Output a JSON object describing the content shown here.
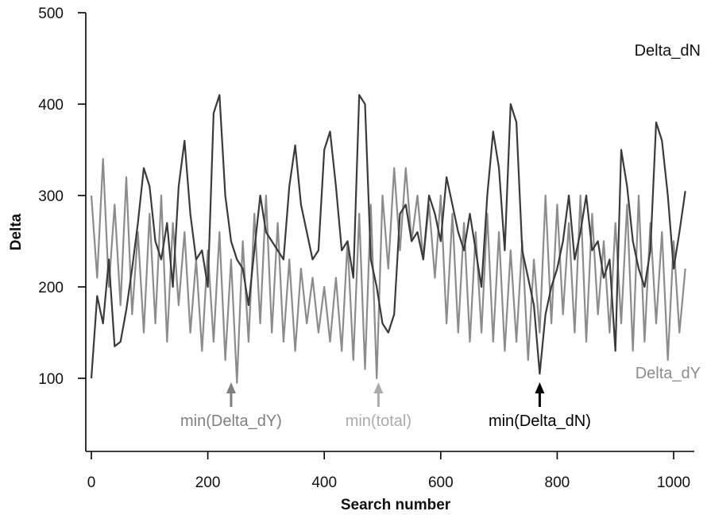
{
  "chart_data": {
    "type": "line",
    "xlabel": "Search number",
    "ylabel": "Delta",
    "xlim": [
      0,
      1030
    ],
    "ylim": [
      20,
      500
    ],
    "xticks": [
      0,
      200,
      400,
      600,
      800,
      1000
    ],
    "yticks": [
      100,
      200,
      300,
      400,
      500
    ],
    "grid": false,
    "series": [
      {
        "name": "Delta_dN",
        "color": "#3a3a3a",
        "x": [
          0,
          10,
          20,
          30,
          40,
          50,
          60,
          70,
          80,
          90,
          100,
          110,
          120,
          130,
          140,
          150,
          160,
          170,
          180,
          190,
          200,
          210,
          220,
          230,
          240,
          250,
          260,
          270,
          280,
          290,
          300,
          310,
          320,
          330,
          340,
          350,
          360,
          370,
          380,
          390,
          400,
          410,
          420,
          430,
          440,
          450,
          460,
          470,
          480,
          490,
          500,
          510,
          520,
          530,
          540,
          550,
          560,
          570,
          580,
          590,
          600,
          610,
          620,
          630,
          640,
          650,
          660,
          670,
          680,
          690,
          700,
          710,
          720,
          730,
          740,
          750,
          760,
          770,
          780,
          790,
          800,
          810,
          820,
          830,
          840,
          850,
          860,
          870,
          880,
          890,
          900,
          910,
          920,
          930,
          940,
          950,
          960,
          970,
          980,
          990,
          1000,
          1010,
          1020
        ],
        "y": [
          100,
          190,
          160,
          230,
          135,
          140,
          175,
          220,
          270,
          330,
          310,
          250,
          230,
          270,
          200,
          310,
          360,
          280,
          230,
          240,
          200,
          390,
          410,
          300,
          250,
          230,
          220,
          180,
          240,
          300,
          260,
          250,
          240,
          230,
          310,
          355,
          290,
          260,
          230,
          240,
          350,
          370,
          310,
          240,
          250,
          210,
          410,
          400,
          230,
          200,
          160,
          150,
          170,
          280,
          290,
          250,
          260,
          230,
          300,
          280,
          250,
          320,
          290,
          260,
          240,
          280,
          240,
          200,
          300,
          370,
          330,
          240,
          400,
          380,
          240,
          210,
          180,
          105,
          170,
          200,
          220,
          250,
          300,
          230,
          260,
          300,
          240,
          250,
          210,
          230,
          130,
          350,
          310,
          250,
          220,
          200,
          240,
          380,
          360,
          300,
          220,
          260,
          305
        ]
      },
      {
        "name": "Delta_dY",
        "color": "#8c8c8c",
        "x": [
          0,
          10,
          20,
          30,
          40,
          50,
          60,
          70,
          80,
          90,
          100,
          110,
          120,
          130,
          140,
          150,
          160,
          170,
          180,
          190,
          200,
          210,
          220,
          230,
          240,
          250,
          260,
          270,
          280,
          290,
          300,
          310,
          320,
          330,
          340,
          350,
          360,
          370,
          380,
          390,
          400,
          410,
          420,
          430,
          440,
          450,
          460,
          470,
          480,
          490,
          500,
          510,
          520,
          530,
          540,
          550,
          560,
          570,
          580,
          590,
          600,
          610,
          620,
          630,
          640,
          650,
          660,
          670,
          680,
          690,
          700,
          710,
          720,
          730,
          740,
          750,
          760,
          770,
          780,
          790,
          800,
          810,
          820,
          830,
          840,
          850,
          860,
          870,
          880,
          890,
          900,
          910,
          920,
          930,
          940,
          950,
          960,
          970,
          980,
          990,
          1000,
          1010,
          1020
        ],
        "y": [
          300,
          210,
          340,
          200,
          290,
          180,
          320,
          170,
          260,
          150,
          280,
          160,
          300,
          140,
          270,
          180,
          260,
          150,
          230,
          130,
          240,
          140,
          260,
          120,
          230,
          95,
          250,
          140,
          280,
          160,
          300,
          150,
          270,
          140,
          230,
          130,
          220,
          160,
          210,
          150,
          200,
          140,
          210,
          130,
          250,
          120,
          280,
          110,
          290,
          100,
          300,
          220,
          330,
          240,
          330,
          250,
          300,
          230,
          290,
          210,
          300,
          160,
          280,
          150,
          270,
          140,
          260,
          150,
          280,
          140,
          260,
          130,
          240,
          140,
          250,
          120,
          230,
          150,
          300,
          160,
          290,
          170,
          270,
          150,
          300,
          140,
          280,
          170,
          250,
          150,
          270,
          160,
          290,
          130,
          300,
          140,
          270,
          160,
          260,
          120,
          250,
          150,
          220
        ]
      }
    ],
    "annotations": [
      {
        "label": "min(Delta_dY)",
        "x": 240,
        "color": "#7f7f7f"
      },
      {
        "label": "min(total)",
        "x": 493,
        "color": "#ababab"
      },
      {
        "label": "min(Delta_dN)",
        "x": 770,
        "color": "#000000"
      }
    ]
  }
}
